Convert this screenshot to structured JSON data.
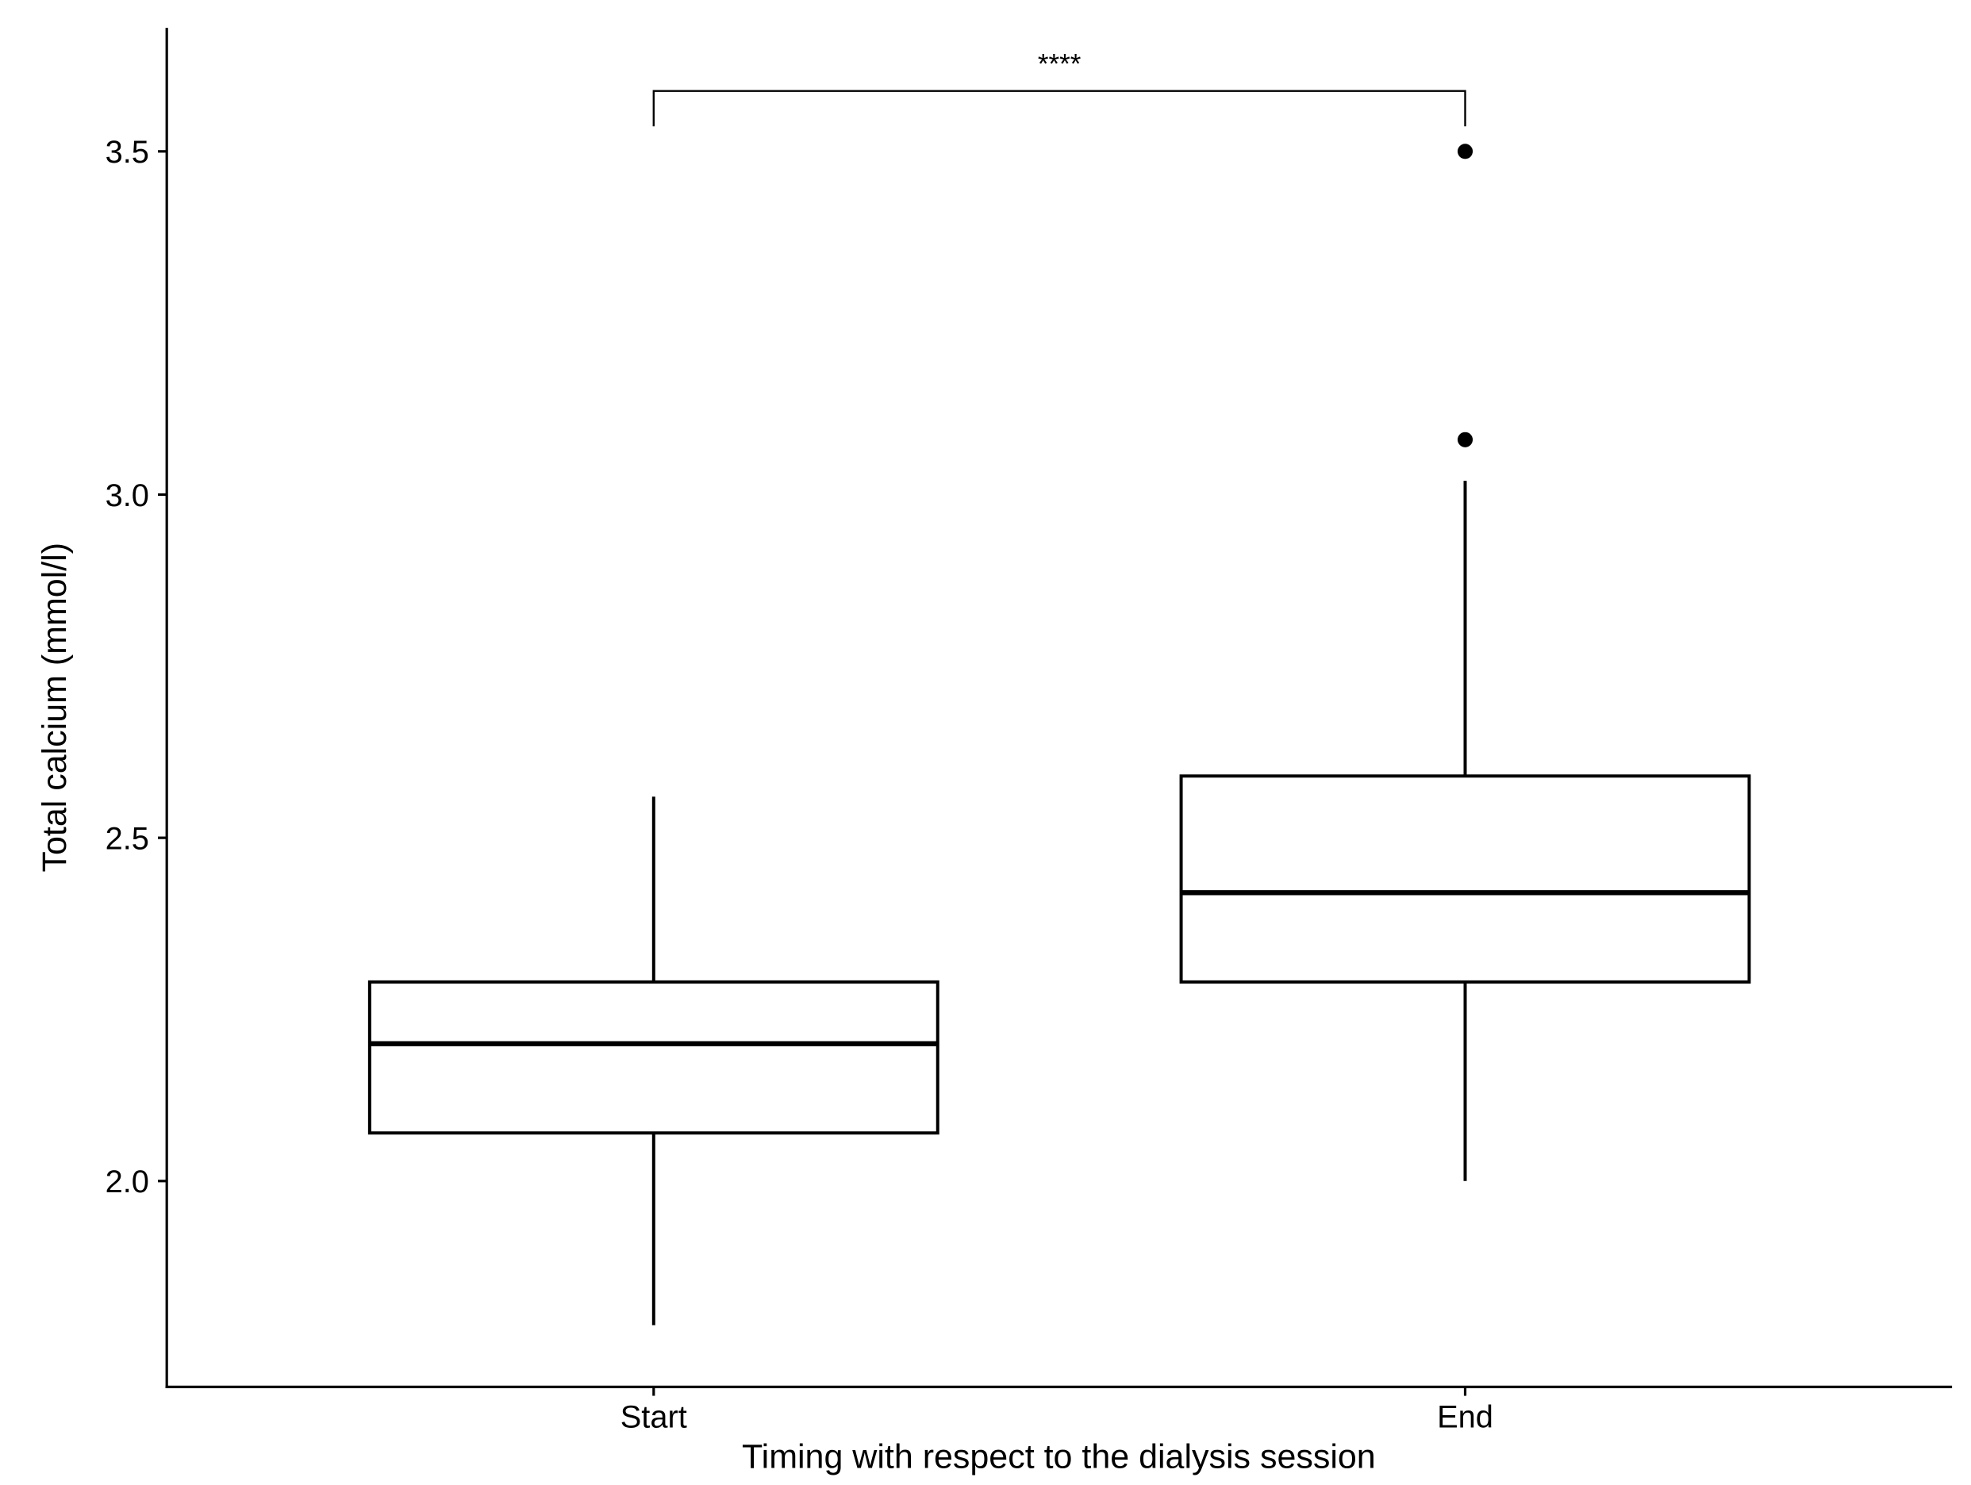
{
  "chart_data": {
    "type": "box",
    "x_label": "Timing with respect to the dialysis session",
    "y_label": "Total calcium (mmol/l)",
    "categories": [
      "Start",
      "End"
    ],
    "boxes": [
      {
        "min": 1.79,
        "q1": 2.07,
        "median": 2.2,
        "q3": 2.29,
        "max": 2.56,
        "outliers": []
      },
      {
        "min": 2.0,
        "q1": 2.29,
        "median": 2.42,
        "q3": 2.59,
        "max": 3.02,
        "outliers": [
          3.08,
          3.5
        ]
      }
    ],
    "annotation": "****",
    "ylim": [
      1.7,
      3.68
    ],
    "yticks": [
      {
        "value": 2,
        "label": "2.0"
      },
      2.5,
      {
        "value": 3,
        "label": "3.0"
      },
      3.5
    ],
    "color": "#000000"
  }
}
